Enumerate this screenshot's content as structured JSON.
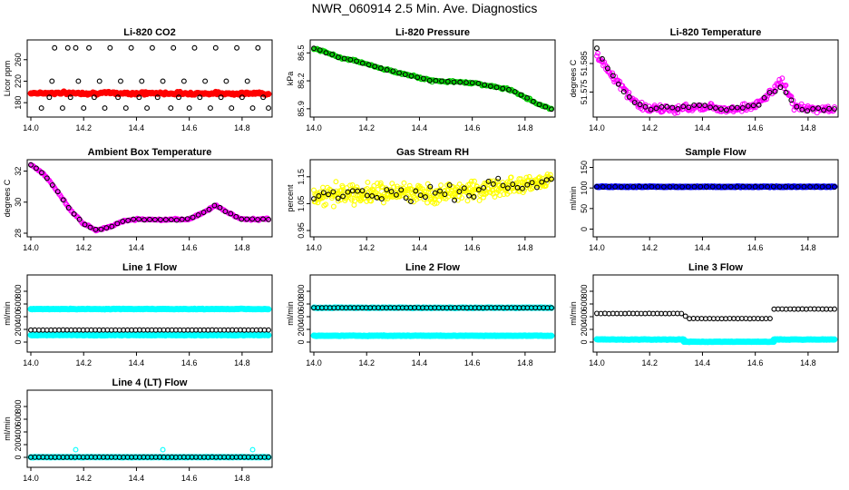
{
  "title": "NWR_060914  2.5 Min. Ave. Diagnostics",
  "colors": {
    "black": "#000000",
    "red": "#ff0000",
    "green": "#00cc00",
    "magenta": "#ff00ff",
    "yellow": "#ffff00",
    "blue": "#0000ff",
    "cyan": "#00ffff"
  },
  "chart_data": [
    {
      "type": "scatter",
      "title": "Li-820 CO2",
      "ylabel": "Licor ppm",
      "xlim": [
        14.0,
        14.9
      ],
      "ylim": [
        160,
        290
      ],
      "xticks": [
        "14.0",
        "14.2",
        "14.4",
        "14.6",
        "14.8"
      ],
      "yticks": [
        "180",
        "220",
        "260"
      ],
      "series": [
        {
          "name": "red",
          "color": "red",
          "shape": "dot",
          "segments": [
            {
              "x0": 14.0,
              "x1": 14.9,
              "y0": 198,
              "y1": 197,
              "noise": 2
            }
          ]
        },
        {
          "name": "black",
          "color": "black",
          "shape": "circle",
          "points": [
            [
              14.04,
              170
            ],
            [
              14.07,
              190
            ],
            [
              14.08,
              220
            ],
            [
              14.09,
              282
            ],
            [
              14.12,
              170
            ],
            [
              14.14,
              282
            ],
            [
              14.15,
              190
            ],
            [
              14.17,
              282
            ],
            [
              14.18,
              220
            ],
            [
              14.2,
              170
            ],
            [
              14.22,
              282
            ],
            [
              14.24,
              190
            ],
            [
              14.26,
              220
            ],
            [
              14.28,
              170
            ],
            [
              14.3,
              282
            ],
            [
              14.33,
              190
            ],
            [
              14.34,
              220
            ],
            [
              14.36,
              170
            ],
            [
              14.38,
              282
            ],
            [
              14.41,
              190
            ],
            [
              14.42,
              220
            ],
            [
              14.44,
              170
            ],
            [
              14.46,
              282
            ],
            [
              14.48,
              190
            ],
            [
              14.5,
              220
            ],
            [
              14.53,
              170
            ],
            [
              14.54,
              282
            ],
            [
              14.56,
              190
            ],
            [
              14.58,
              220
            ],
            [
              14.6,
              170
            ],
            [
              14.62,
              282
            ],
            [
              14.64,
              190
            ],
            [
              14.66,
              220
            ],
            [
              14.68,
              170
            ],
            [
              14.7,
              282
            ],
            [
              14.72,
              190
            ],
            [
              14.74,
              220
            ],
            [
              14.76,
              170
            ],
            [
              14.78,
              282
            ],
            [
              14.8,
              190
            ],
            [
              14.82,
              220
            ],
            [
              14.84,
              170
            ],
            [
              14.86,
              282
            ],
            [
              14.88,
              190
            ],
            [
              14.9,
              170
            ]
          ]
        }
      ]
    },
    {
      "type": "scatter",
      "title": "Li-820 Pressure",
      "ylabel": "kPa",
      "xlim": [
        14.0,
        14.9
      ],
      "ylim": [
        85.85,
        86.6
      ],
      "xticks": [
        "14.0",
        "14.2",
        "14.4",
        "14.6",
        "14.8"
      ],
      "yticks": [
        "85.9",
        "86.2",
        "86.5"
      ],
      "series": [
        {
          "name": "green",
          "color": "green",
          "shape": "circle",
          "path": [
            [
              14.0,
              86.55
            ],
            [
              14.1,
              86.45
            ],
            [
              14.15,
              86.42
            ],
            [
              14.3,
              86.3
            ],
            [
              14.45,
              86.2
            ],
            [
              14.6,
              86.18
            ],
            [
              14.75,
              86.1
            ],
            [
              14.85,
              85.95
            ],
            [
              14.9,
              85.9
            ]
          ],
          "noise": 0.01,
          "n": 220
        },
        {
          "name": "black",
          "color": "black",
          "shape": "circle",
          "path": [
            [
              14.0,
              86.55
            ],
            [
              14.1,
              86.45
            ],
            [
              14.15,
              86.42
            ],
            [
              14.3,
              86.3
            ],
            [
              14.45,
              86.2
            ],
            [
              14.6,
              86.18
            ],
            [
              14.75,
              86.1
            ],
            [
              14.85,
              85.95
            ],
            [
              14.9,
              85.9
            ]
          ],
          "noise": 0.004,
          "n": 40
        }
      ]
    },
    {
      "type": "scatter",
      "title": "Li-820 Temperature",
      "ylabel": "degrees C",
      "xlim": [
        14.0,
        14.9
      ],
      "ylim": [
        51.5675,
        51.592
      ],
      "xticks": [
        "14.0",
        "14.2",
        "14.4",
        "14.6",
        "14.8"
      ],
      "yticks": [
        "51.575",
        "51.585"
      ],
      "series": [
        {
          "name": "magenta",
          "color": "magenta",
          "shape": "circle",
          "path": [
            [
              14.0,
              51.588
            ],
            [
              14.05,
              51.582
            ],
            [
              14.1,
              51.576
            ],
            [
              14.15,
              51.571
            ],
            [
              14.2,
              51.569
            ],
            [
              14.3,
              51.569
            ],
            [
              14.4,
              51.57
            ],
            [
              14.5,
              51.569
            ],
            [
              14.6,
              51.57
            ],
            [
              14.65,
              51.574
            ],
            [
              14.7,
              51.579
            ],
            [
              14.75,
              51.57
            ],
            [
              14.8,
              51.569
            ],
            [
              14.9,
              51.569
            ]
          ],
          "noise": 0.0012,
          "n": 260
        },
        {
          "name": "black",
          "color": "black",
          "shape": "circle",
          "path": [
            [
              14.0,
              51.59
            ],
            [
              14.05,
              51.582
            ],
            [
              14.1,
              51.575
            ],
            [
              14.15,
              51.571
            ],
            [
              14.2,
              51.569
            ],
            [
              14.3,
              51.57
            ],
            [
              14.4,
              51.57
            ],
            [
              14.5,
              51.569
            ],
            [
              14.6,
              51.57
            ],
            [
              14.65,
              51.574
            ],
            [
              14.7,
              51.577
            ],
            [
              14.75,
              51.57
            ],
            [
              14.8,
              51.569
            ],
            [
              14.9,
              51.569
            ]
          ],
          "noise": 0.0006,
          "n": 45
        }
      ]
    },
    {
      "type": "scatter",
      "title": "Ambient Box Temperature",
      "ylabel": "degrees C",
      "xlim": [
        14.0,
        14.9
      ],
      "ylim": [
        28,
        32.5
      ],
      "xticks": [
        "14.0",
        "14.2",
        "14.4",
        "14.6",
        "14.8"
      ],
      "yticks": [
        "28",
        "30",
        "32"
      ],
      "series": [
        {
          "name": "magenta",
          "color": "magenta",
          "shape": "circle",
          "path": [
            [
              14.0,
              32.4
            ],
            [
              14.05,
              31.8
            ],
            [
              14.1,
              30.7
            ],
            [
              14.15,
              29.5
            ],
            [
              14.2,
              28.6
            ],
            [
              14.25,
              28.2
            ],
            [
              14.3,
              28.4
            ],
            [
              14.35,
              28.8
            ],
            [
              14.4,
              28.9
            ],
            [
              14.5,
              28.85
            ],
            [
              14.6,
              28.9
            ],
            [
              14.65,
              29.3
            ],
            [
              14.7,
              29.8
            ],
            [
              14.75,
              29.3
            ],
            [
              14.8,
              28.9
            ],
            [
              14.9,
              28.9
            ]
          ],
          "noise": 0.05,
          "n": 220
        },
        {
          "name": "black",
          "color": "black",
          "shape": "circle",
          "path": [
            [
              14.0,
              32.4
            ],
            [
              14.05,
              31.8
            ],
            [
              14.1,
              30.7
            ],
            [
              14.15,
              29.5
            ],
            [
              14.2,
              28.6
            ],
            [
              14.25,
              28.2
            ],
            [
              14.3,
              28.4
            ],
            [
              14.35,
              28.8
            ],
            [
              14.4,
              28.9
            ],
            [
              14.5,
              28.85
            ],
            [
              14.6,
              28.9
            ],
            [
              14.65,
              29.3
            ],
            [
              14.7,
              29.8
            ],
            [
              14.75,
              29.3
            ],
            [
              14.8,
              28.9
            ],
            [
              14.9,
              28.9
            ]
          ],
          "noise": 0.03,
          "n": 45
        }
      ]
    },
    {
      "type": "scatter",
      "title": "Gas Stream RH",
      "ylabel": "percent",
      "xlim": [
        14.0,
        14.9
      ],
      "ylim": [
        0.94,
        1.2
      ],
      "xticks": [
        "14.0",
        "14.2",
        "14.4",
        "14.6",
        "14.8"
      ],
      "yticks": [
        "0.95",
        "1.05",
        "1.15"
      ],
      "series": [
        {
          "name": "yellow",
          "color": "yellow",
          "shape": "circle",
          "path": [
            [
              14.0,
              1.08
            ],
            [
              14.3,
              1.09
            ],
            [
              14.5,
              1.09
            ],
            [
              14.7,
              1.11
            ],
            [
              14.9,
              1.14
            ]
          ],
          "noise": 0.03,
          "n": 420
        },
        {
          "name": "black",
          "color": "black",
          "shape": "circle",
          "path": [
            [
              14.0,
              1.08
            ],
            [
              14.3,
              1.09
            ],
            [
              14.5,
              1.09
            ],
            [
              14.7,
              1.11
            ],
            [
              14.9,
              1.14
            ]
          ],
          "noise": 0.025,
          "n": 50
        }
      ]
    },
    {
      "type": "scatter",
      "title": "Sample Flow",
      "ylabel": "ml/min",
      "xlim": [
        14.0,
        14.9
      ],
      "ylim": [
        -10,
        160
      ],
      "xticks": [
        "14.0",
        "14.2",
        "14.4",
        "14.6",
        "14.8"
      ],
      "yticks": [
        "0",
        "50",
        "100",
        "150"
      ],
      "series": [
        {
          "name": "blue",
          "color": "blue",
          "shape": "dot",
          "segments": [
            {
              "x0": 14.0,
              "x1": 14.9,
              "y0": 103,
              "y1": 103,
              "noise": 0.6
            }
          ]
        },
        {
          "name": "black",
          "color": "black",
          "shape": "circle",
          "path": [
            [
              14.0,
              103
            ],
            [
              14.9,
              103
            ]
          ],
          "noise": 0.3,
          "n": 40
        }
      ]
    },
    {
      "type": "scatter",
      "title": "Line 1 Flow",
      "ylabel": "ml/min",
      "xlim": [
        14.0,
        14.9
      ],
      "ylim": [
        -100,
        1000
      ],
      "xticks": [
        "14.0",
        "14.2",
        "14.4",
        "14.6",
        "14.8"
      ],
      "yticks": [
        "0",
        "200",
        "400",
        "600",
        "800"
      ],
      "series": [
        {
          "name": "cyan",
          "color": "cyan",
          "shape": "dot",
          "segments": [
            {
              "x0": 14.0,
              "x1": 14.9,
              "y0": 520,
              "y1": 520,
              "noise": 4
            },
            {
              "x0": 14.0,
              "x1": 14.9,
              "y0": 110,
              "y1": 110,
              "noise": 4
            }
          ]
        },
        {
          "name": "black",
          "color": "black",
          "shape": "circle",
          "path": [
            [
              14.0,
              190
            ],
            [
              14.9,
              190
            ]
          ],
          "noise": 1,
          "n": 60
        }
      ]
    },
    {
      "type": "scatter",
      "title": "Line 2 Flow",
      "ylabel": "ml/min",
      "xlim": [
        14.0,
        14.9
      ],
      "ylim": [
        -100,
        1000
      ],
      "xticks": [
        "14.0",
        "14.2",
        "14.4",
        "14.6",
        "14.8"
      ],
      "yticks": [
        "0",
        "200",
        "400",
        "600",
        "800"
      ],
      "series": [
        {
          "name": "cyan",
          "color": "cyan",
          "shape": "dot",
          "segments": [
            {
              "x0": 14.0,
              "x1": 14.9,
              "y0": 540,
              "y1": 540,
              "noise": 4
            },
            {
              "x0": 14.0,
              "x1": 14.9,
              "y0": 100,
              "y1": 100,
              "noise": 4
            }
          ]
        },
        {
          "name": "black",
          "color": "black",
          "shape": "circle",
          "path": [
            [
              14.0,
              540
            ],
            [
              14.9,
              540
            ]
          ],
          "noise": 1,
          "n": 60
        }
      ]
    },
    {
      "type": "scatter",
      "title": "Line 3 Flow",
      "ylabel": "ml/min",
      "xlim": [
        14.0,
        14.9
      ],
      "ylim": [
        -100,
        1000
      ],
      "xticks": [
        "14.0",
        "14.2",
        "14.4",
        "14.6",
        "14.8"
      ],
      "yticks": [
        "0",
        "200",
        "400",
        "600",
        "800"
      ],
      "series": [
        {
          "name": "cyan",
          "color": "cyan",
          "shape": "dot",
          "segments": [
            {
              "x0": 14.0,
              "x1": 14.33,
              "y0": 40,
              "y1": 40,
              "noise": 4
            },
            {
              "x0": 14.33,
              "x1": 14.67,
              "y0": 5,
              "y1": 5,
              "noise": 3
            },
            {
              "x0": 14.67,
              "x1": 14.9,
              "y0": 40,
              "y1": 40,
              "noise": 4
            }
          ]
        },
        {
          "name": "black",
          "color": "black",
          "shape": "circle",
          "path": [
            [
              14.0,
              450
            ],
            [
              14.33,
              450
            ],
            [
              14.34,
              370
            ],
            [
              14.66,
              370
            ],
            [
              14.67,
              520
            ],
            [
              14.9,
              520
            ]
          ],
          "noise": 2,
          "n": 60
        }
      ]
    },
    {
      "type": "scatter",
      "title": "Line 4 (LT) Flow",
      "ylabel": "ml/min",
      "xlim": [
        14.0,
        14.9
      ],
      "ylim": [
        -100,
        1000
      ],
      "xticks": [
        "14.0",
        "14.2",
        "14.4",
        "14.6",
        "14.8"
      ],
      "yticks": [
        "0",
        "200",
        "400",
        "600",
        "800"
      ],
      "series": [
        {
          "name": "cyan",
          "color": "cyan",
          "shape": "dot",
          "segments": [
            {
              "x0": 14.0,
              "x1": 14.9,
              "y0": 3,
              "y1": 3,
              "noise": 2
            }
          ]
        },
        {
          "name": "cyan-circles",
          "color": "cyan",
          "shape": "circle",
          "points": [
            [
              14.17,
              120
            ],
            [
              14.5,
              120
            ],
            [
              14.84,
              120
            ]
          ]
        },
        {
          "name": "black",
          "color": "black",
          "shape": "circle",
          "path": [
            [
              14.0,
              3
            ],
            [
              14.9,
              3
            ]
          ],
          "noise": 1,
          "n": 60
        }
      ]
    }
  ]
}
